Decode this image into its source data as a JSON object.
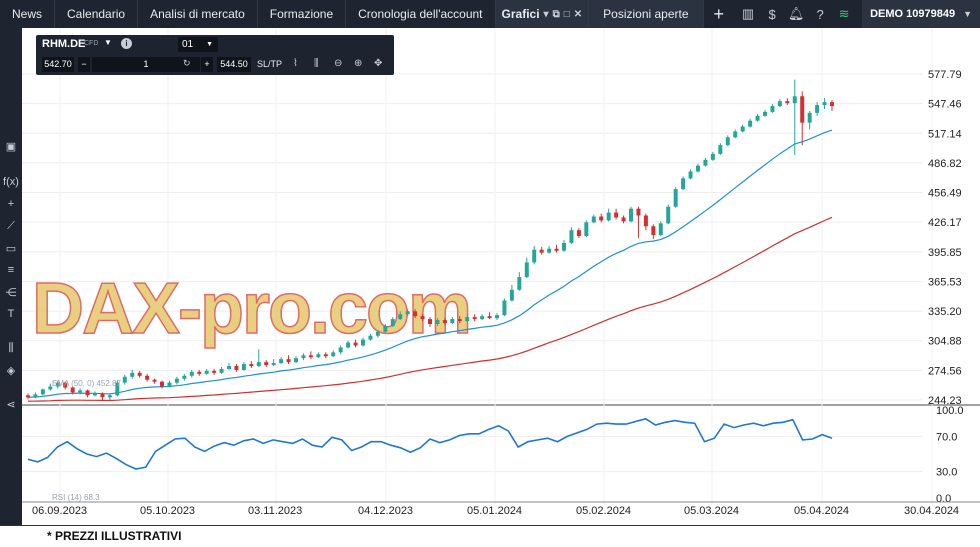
{
  "nav": {
    "items": [
      "News",
      "Calendario",
      "Analisi di mercato",
      "Formazione",
      "Cronologia dell'account"
    ],
    "active_tab": "Grafici",
    "positions_tab": "Posizioni aperte",
    "add_tab": "+"
  },
  "account": {
    "label": "DEMO 10979849"
  },
  "instrument": {
    "symbol": "RHM.DE",
    "type": "CFD",
    "timeframe": "01",
    "sell_price": "542.70",
    "quantity": "1",
    "buy_price": "544.50",
    "sl_tp": "SL/TP"
  },
  "watermark": "DAX-pro.com",
  "disclaimer": "* PREZZI ILLUSTRATIVI",
  "colors": {
    "up": "#26a69a",
    "down": "#d32f2f",
    "ema_fast": "#1f8fe0",
    "ema_slow": "#d32f2f",
    "rsi": "#1f77d4",
    "topbar": "#1e2530"
  },
  "chart_data": {
    "type": "candlestick",
    "title": "",
    "x_ticks": [
      "06.09.2023",
      "05.10.2023",
      "03.11.2023",
      "04.12.2023",
      "05.01.2024",
      "05.02.2024",
      "05.03.2024",
      "05.04.2024",
      "30.04.2024"
    ],
    "y_ticks": [
      577.79,
      547.46,
      517.14,
      486.82,
      456.49,
      426.17,
      395.85,
      365.53,
      335.2,
      304.88,
      274.56,
      244.23
    ],
    "ylim": [
      244.23,
      577.79
    ],
    "overlay_label": "EMA (50, 0) 452.87",
    "rsi": {
      "label": "RSI (14) 68.3",
      "y_ticks": [
        100.0,
        70.0,
        30.0,
        0.0
      ],
      "ylim": [
        0,
        100
      ],
      "values": [
        44,
        41,
        46,
        58,
        64,
        56,
        50,
        47,
        51,
        45,
        38,
        33,
        35,
        53,
        60,
        67,
        68,
        58,
        53,
        59,
        63,
        60,
        65,
        67,
        62,
        66,
        64,
        62,
        67,
        60,
        58,
        69,
        66,
        54,
        58,
        64,
        64,
        60,
        57,
        52,
        57,
        67,
        63,
        66,
        71,
        73,
        73,
        78,
        82,
        76,
        58,
        64,
        66,
        68,
        64,
        70,
        74,
        78,
        84,
        85,
        84,
        84,
        87,
        90,
        83,
        86,
        88,
        86,
        85,
        64,
        68,
        84,
        80,
        83,
        85,
        82,
        85,
        86,
        89,
        66,
        67,
        72,
        68
      ]
    },
    "candles": [
      [
        249,
        247,
        251,
        245
      ],
      [
        247,
        250,
        252,
        246
      ],
      [
        250,
        255,
        256,
        249
      ],
      [
        255,
        258,
        261,
        254
      ],
      [
        258,
        262,
        264,
        256
      ],
      [
        262,
        257,
        263,
        255
      ],
      [
        257,
        252,
        258,
        250
      ],
      [
        252,
        254,
        256,
        250
      ],
      [
        254,
        249,
        255,
        247
      ],
      [
        249,
        251,
        253,
        248
      ],
      [
        251,
        247,
        252,
        244
      ],
      [
        247,
        249,
        250,
        244
      ],
      [
        249,
        262,
        264,
        248
      ],
      [
        262,
        268,
        270,
        260
      ],
      [
        268,
        272,
        275,
        266
      ],
      [
        272,
        269,
        274,
        267
      ],
      [
        269,
        265,
        271,
        263
      ],
      [
        265,
        263,
        266,
        261
      ],
      [
        263,
        258,
        264,
        256
      ],
      [
        258,
        262,
        264,
        257
      ],
      [
        262,
        266,
        268,
        260
      ],
      [
        266,
        269,
        271,
        264
      ],
      [
        269,
        273,
        275,
        267
      ],
      [
        273,
        271,
        275,
        269
      ],
      [
        271,
        274,
        276,
        270
      ],
      [
        274,
        272,
        276,
        270
      ],
      [
        272,
        276,
        278,
        271
      ],
      [
        276,
        279,
        282,
        275
      ],
      [
        279,
        275,
        281,
        273
      ],
      [
        275,
        281,
        283,
        274
      ],
      [
        281,
        279,
        284,
        277
      ],
      [
        279,
        283,
        296,
        278
      ],
      [
        283,
        280,
        285,
        278
      ],
      [
        280,
        282,
        286,
        279
      ],
      [
        282,
        286,
        288,
        281
      ],
      [
        286,
        283,
        290,
        281
      ],
      [
        283,
        287,
        289,
        282
      ],
      [
        287,
        290,
        292,
        285
      ],
      [
        290,
        288,
        294,
        286
      ],
      [
        288,
        291,
        293,
        287
      ],
      [
        291,
        289,
        293,
        287
      ],
      [
        289,
        293,
        295,
        288
      ],
      [
        293,
        298,
        300,
        291
      ],
      [
        298,
        303,
        305,
        297
      ],
      [
        303,
        300,
        306,
        298
      ],
      [
        300,
        306,
        308,
        299
      ],
      [
        306,
        310,
        312,
        305
      ],
      [
        310,
        314,
        316,
        308
      ],
      [
        314,
        320,
        322,
        313
      ],
      [
        320,
        327,
        329,
        319
      ],
      [
        327,
        332,
        335,
        326
      ],
      [
        332,
        335,
        337,
        330
      ],
      [
        335,
        330,
        337,
        328
      ],
      [
        330,
        327,
        332,
        325
      ],
      [
        327,
        322,
        329,
        319
      ],
      [
        322,
        326,
        328,
        320
      ],
      [
        326,
        323,
        328,
        321
      ],
      [
        323,
        327,
        329,
        322
      ],
      [
        327,
        325,
        330,
        323
      ],
      [
        325,
        329,
        331,
        324
      ],
      [
        329,
        327,
        332,
        325
      ],
      [
        327,
        330,
        332,
        326
      ],
      [
        330,
        328,
        334,
        327
      ],
      [
        328,
        331,
        333,
        326
      ],
      [
        331,
        346,
        348,
        330
      ],
      [
        346,
        357,
        362,
        345
      ],
      [
        357,
        370,
        375,
        356
      ],
      [
        370,
        385,
        390,
        369
      ],
      [
        385,
        398,
        402,
        383
      ],
      [
        398,
        395,
        401,
        393
      ],
      [
        395,
        399,
        402,
        394
      ],
      [
        399,
        397,
        403,
        395
      ],
      [
        397,
        405,
        408,
        396
      ],
      [
        405,
        418,
        421,
        404
      ],
      [
        418,
        412,
        420,
        410
      ],
      [
        412,
        426,
        428,
        411
      ],
      [
        426,
        432,
        434,
        425
      ],
      [
        432,
        428,
        435,
        426
      ],
      [
        428,
        436,
        440,
        427
      ],
      [
        436,
        431,
        440,
        429
      ],
      [
        431,
        427,
        433,
        425
      ],
      [
        427,
        440,
        442,
        426
      ],
      [
        440,
        433,
        442,
        410
      ],
      [
        433,
        422,
        435,
        418
      ],
      [
        422,
        413,
        424,
        409
      ],
      [
        413,
        425,
        427,
        412
      ],
      [
        425,
        442,
        444,
        424
      ],
      [
        442,
        460,
        462,
        441
      ],
      [
        460,
        471,
        473,
        459
      ],
      [
        471,
        478,
        480,
        470
      ],
      [
        478,
        484,
        486,
        477
      ],
      [
        484,
        490,
        492,
        483
      ],
      [
        490,
        496,
        498,
        489
      ],
      [
        496,
        505,
        507,
        495
      ],
      [
        505,
        513,
        515,
        504
      ],
      [
        513,
        519,
        521,
        512
      ],
      [
        519,
        524,
        526,
        518
      ],
      [
        524,
        530,
        532,
        523
      ],
      [
        530,
        535,
        537,
        529
      ],
      [
        535,
        539,
        541,
        534
      ],
      [
        539,
        545,
        547,
        538
      ],
      [
        545,
        550,
        552,
        544
      ],
      [
        550,
        548,
        553,
        546
      ],
      [
        548,
        555,
        572,
        495
      ],
      [
        555,
        528,
        560,
        505
      ],
      [
        528,
        538,
        540,
        521
      ],
      [
        538,
        546,
        549,
        535
      ],
      [
        546,
        549,
        553,
        542
      ],
      [
        549,
        545,
        551,
        540
      ]
    ]
  }
}
